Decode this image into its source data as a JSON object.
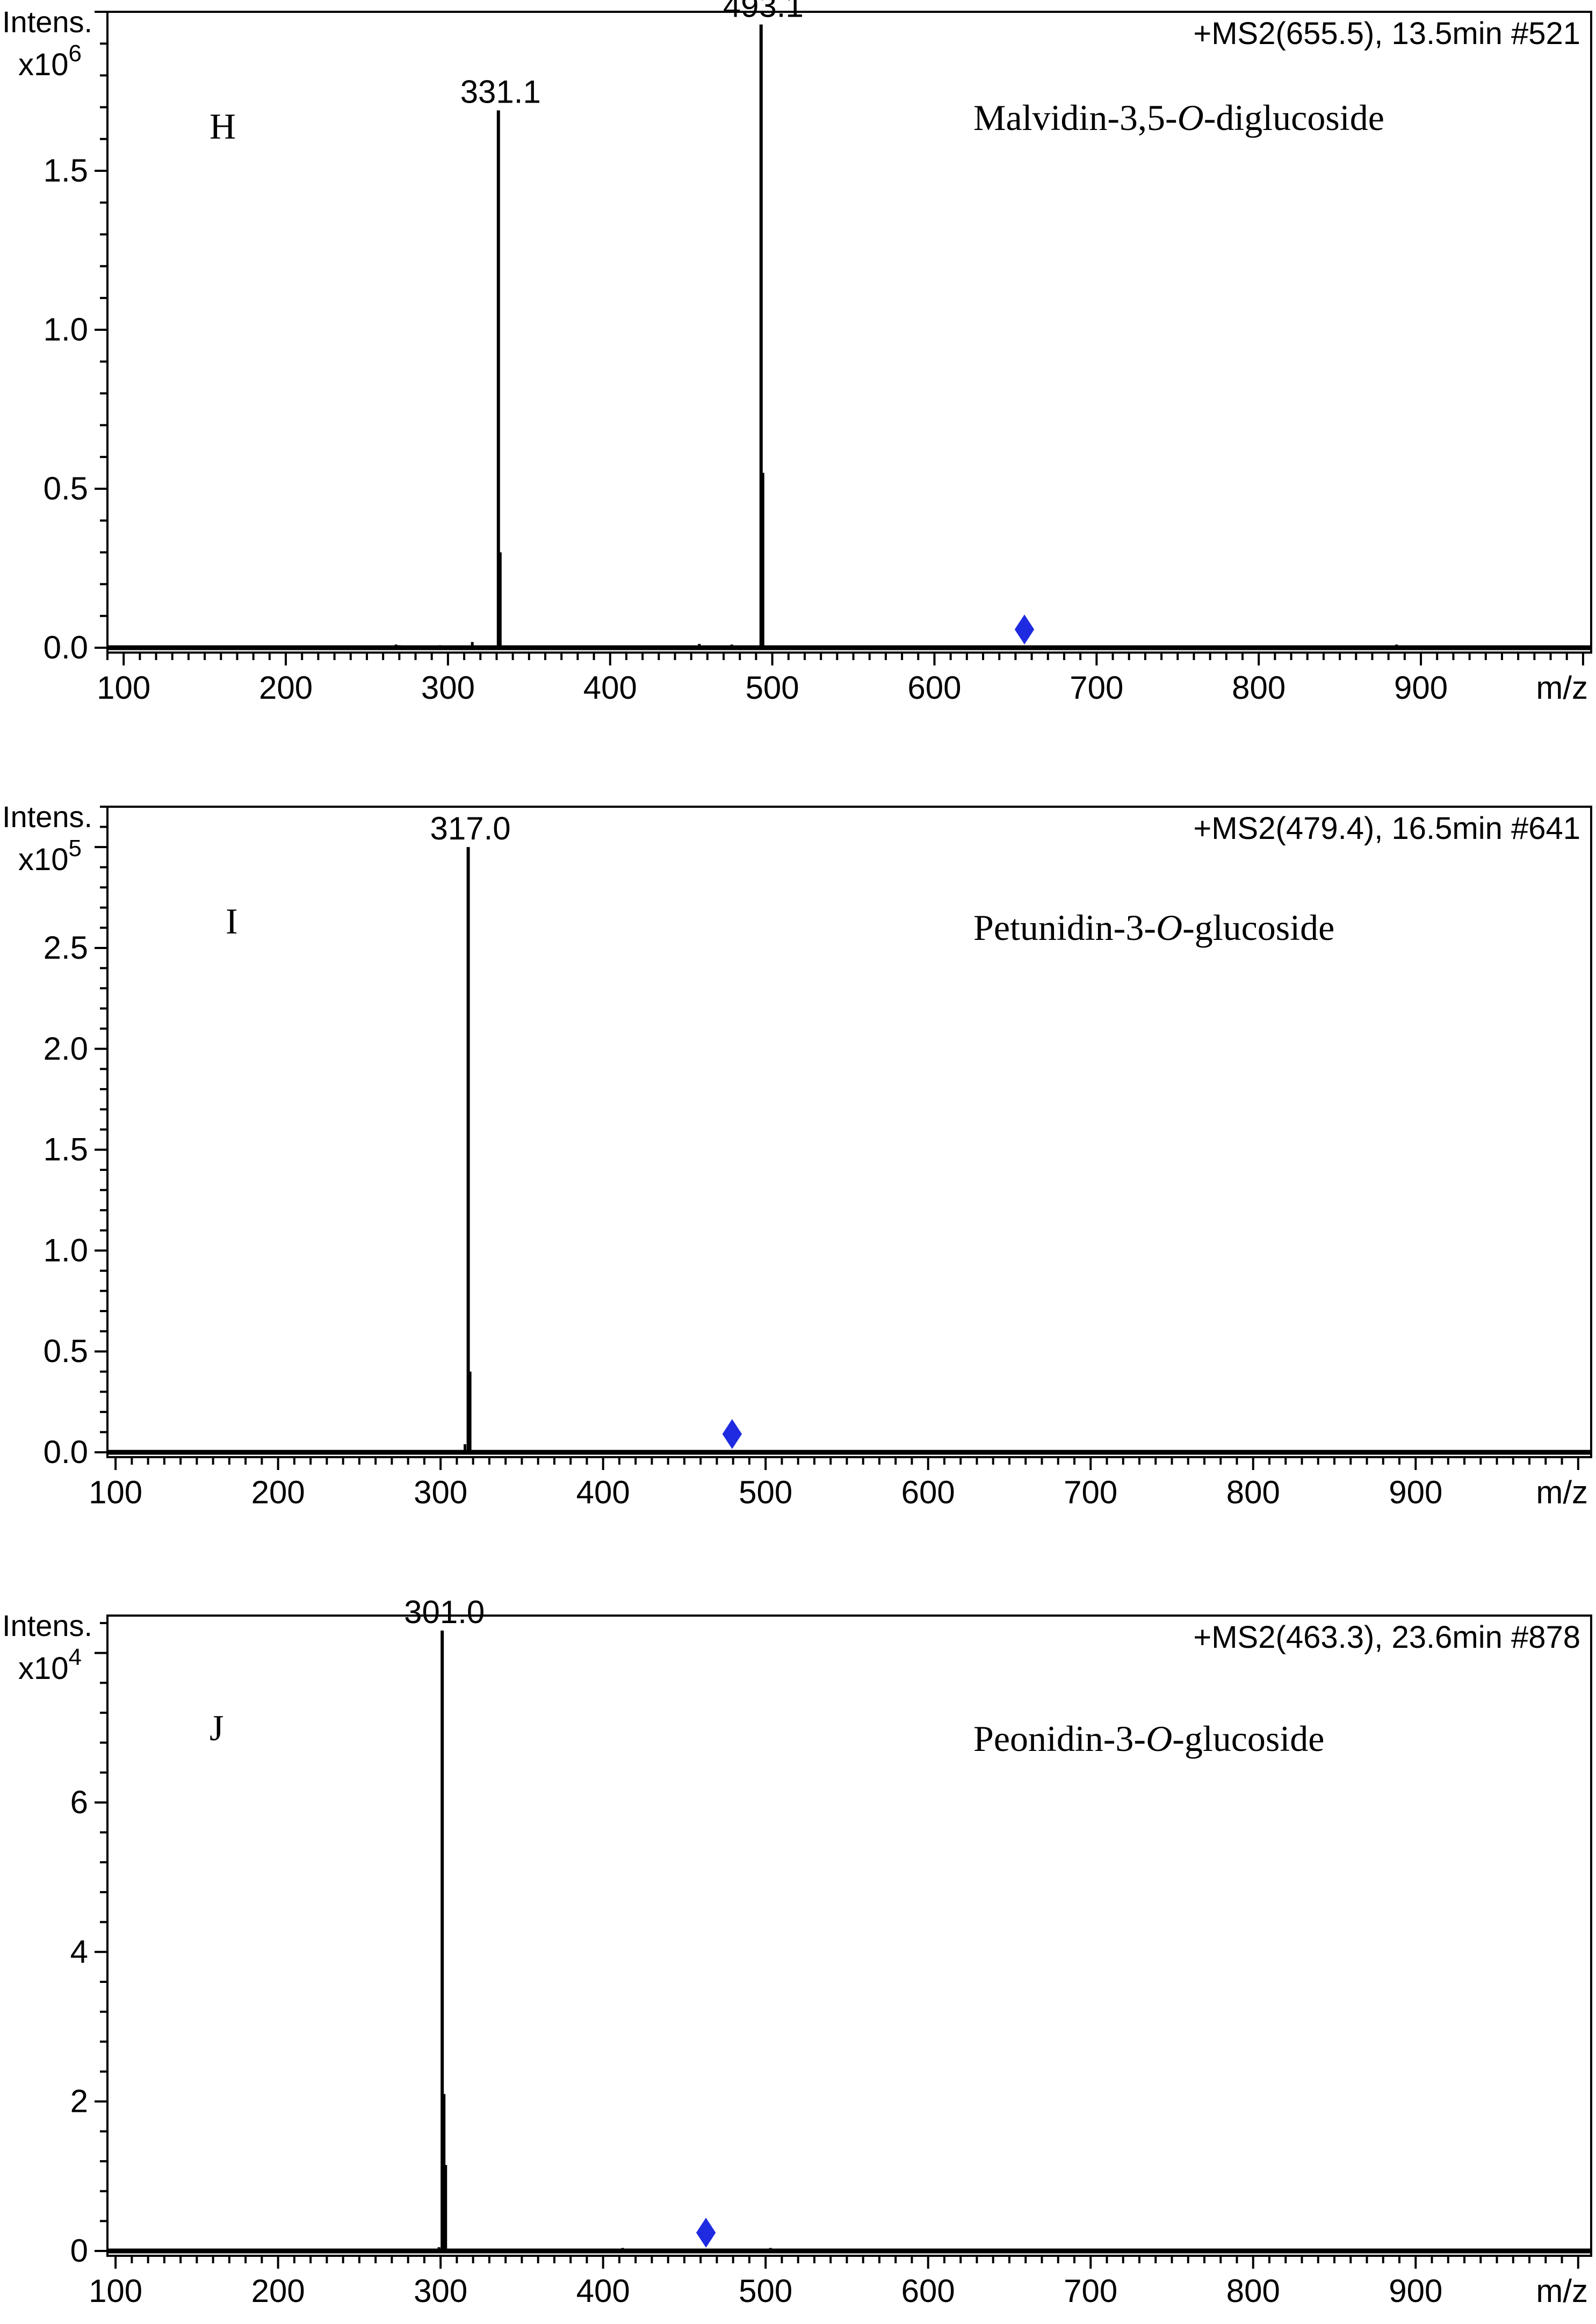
{
  "chart_data": [
    {
      "type": "line",
      "panel_letter": "H",
      "compound": "Malvidin-3,5-O-diglucoside",
      "compound_parts": [
        "Malvidin-3,5-",
        "O",
        "-diglucoside"
      ],
      "scan_info": "+MS2(655.5), 13.5min #521",
      "ylabel": "Intens.",
      "y_scale_base": "x10",
      "y_scale_exp": "6",
      "xlabel": "m/z",
      "xlim": [
        90,
        1005
      ],
      "ylim": [
        0,
        2.0
      ],
      "x_ticks": [
        100,
        200,
        300,
        400,
        500,
        600,
        700,
        800,
        900
      ],
      "x_tick_labels": [
        "100",
        "200",
        "300",
        "400",
        "500",
        "600",
        "700",
        "800",
        "900"
      ],
      "y_ticks": [
        0,
        0.5,
        1.0,
        1.5
      ],
      "y_tick_labels": [
        "0.0",
        "0.5",
        "1.0",
        "1.5"
      ],
      "precursor_mz": 655.5,
      "peaks": [
        {
          "mz": 193.0,
          "intensity": 0.006
        },
        {
          "mz": 268.0,
          "intensity": 0.01
        },
        {
          "mz": 270.0,
          "intensity": 0.008
        },
        {
          "mz": 295.0,
          "intensity": 0.008
        },
        {
          "mz": 297.0,
          "intensity": 0.007
        },
        {
          "mz": 315.0,
          "intensity": 0.018
        },
        {
          "mz": 331.1,
          "intensity": 1.69,
          "label": "331.1"
        },
        {
          "mz": 332.1,
          "intensity": 0.3
        },
        {
          "mz": 455.0,
          "intensity": 0.012
        },
        {
          "mz": 475.0,
          "intensity": 0.01
        },
        {
          "mz": 493.1,
          "intensity": 1.96,
          "label": "493.1"
        },
        {
          "mz": 494.1,
          "intensity": 0.55
        },
        {
          "mz": 885.0,
          "intensity": 0.01
        }
      ]
    },
    {
      "type": "line",
      "panel_letter": "I",
      "compound": "Petunidin-3-O-glucoside",
      "compound_parts": [
        "Petunidin-3-",
        "O",
        "-glucoside"
      ],
      "scan_info": "+MS2(479.4), 16.5min #641",
      "ylabel": "Intens.",
      "y_scale_base": "x10",
      "y_scale_exp": "5",
      "xlabel": "m/z",
      "xlim": [
        95,
        1008
      ],
      "ylim": [
        0,
        3.2
      ],
      "x_ticks": [
        100,
        200,
        300,
        400,
        500,
        600,
        700,
        800,
        900
      ],
      "x_tick_labels": [
        "100",
        "200",
        "300",
        "400",
        "500",
        "600",
        "700",
        "800",
        "900"
      ],
      "y_ticks": [
        0,
        0.5,
        1.0,
        1.5,
        2.0,
        2.5
      ],
      "y_tick_labels": [
        "0.0",
        "0.5",
        "1.0",
        "1.5",
        "2.0",
        "2.5"
      ],
      "precursor_mz": 479.4,
      "peaks": [
        {
          "mz": 315.0,
          "intensity": 0.04
        },
        {
          "mz": 317.0,
          "intensity": 3.0,
          "label": "317.0"
        },
        {
          "mz": 318.0,
          "intensity": 0.4
        },
        {
          "mz": 708.0,
          "intensity": 0.012
        },
        {
          "mz": 870.0,
          "intensity": 0.008
        }
      ]
    },
    {
      "type": "line",
      "panel_letter": "J",
      "compound": "Peonidin-3-O-glucoside",
      "compound_parts": [
        "Peonidin-3-",
        "O",
        "-glucoside"
      ],
      "scan_info": "+MS2(463.3), 23.6min #878",
      "ylabel": "Intens.",
      "y_scale_base": "x10",
      "y_scale_exp": "4",
      "xlabel": "m/z",
      "xlim": [
        95,
        1008
      ],
      "ylim": [
        0,
        8.5
      ],
      "x_ticks": [
        100,
        200,
        300,
        400,
        500,
        600,
        700,
        800,
        900
      ],
      "x_tick_labels": [
        "100",
        "200",
        "300",
        "400",
        "500",
        "600",
        "700",
        "800",
        "900"
      ],
      "y_ticks": [
        0,
        2,
        4,
        6
      ],
      "y_tick_labels": [
        "0",
        "2",
        "4",
        "6"
      ],
      "precursor_mz": 463.3,
      "peaks": [
        {
          "mz": 299.0,
          "intensity": 0.05
        },
        {
          "mz": 301.0,
          "intensity": 8.3,
          "label": "301.0"
        },
        {
          "mz": 302.0,
          "intensity": 2.1
        },
        {
          "mz": 303.0,
          "intensity": 1.15
        },
        {
          "mz": 412.0,
          "intensity": 0.04
        },
        {
          "mz": 503.0,
          "intensity": 0.04
        }
      ]
    }
  ]
}
